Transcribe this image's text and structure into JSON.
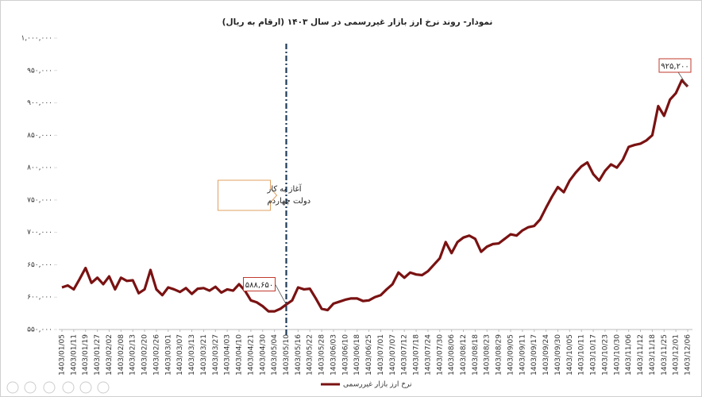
{
  "chart_data": {
    "type": "line",
    "title": "نمودار- روند نرخ ارز بازار غیررسمی در سال ۱۴۰۳ (ارقام به ریال)",
    "categories": [
      "1403/01/05",
      null,
      "1403/01/11",
      null,
      "1403/01/19",
      null,
      "1403/01/27",
      null,
      "1403/02/02",
      null,
      "1403/02/08",
      null,
      "1403/02/13",
      null,
      "1403/02/20",
      null,
      "1403/02/26",
      null,
      "1403/03/01",
      null,
      "1403/03/07",
      null,
      "1403/03/13",
      null,
      "1403/03/21",
      null,
      "1403/03/27",
      null,
      "1403/04/03",
      null,
      "1403/04/10",
      null,
      "1403/04/21",
      null,
      "1403/04/30",
      null,
      "1403/05/04",
      null,
      "1403/05/10",
      null,
      "1403/05/16",
      null,
      "1403/05/22",
      null,
      "1403/05/28",
      null,
      "1403/06/03",
      null,
      "1403/06/10",
      null,
      "1403/06/18",
      null,
      "1403/06/25",
      null,
      "1403/07/01",
      null,
      "1403/07/07",
      null,
      "1403/07/12",
      null,
      "1403/07/18",
      null,
      "1403/07/24",
      null,
      "1403/07/30",
      null,
      "1403/08/06",
      null,
      "1403/08/12",
      null,
      "1403/08/18",
      null,
      "1403/08/23",
      null,
      "1403/08/29",
      null,
      "1403/09/05",
      null,
      "1403/09/11",
      null,
      "1403/09/17",
      null,
      "1403/09/24",
      null,
      "1403/09/30",
      null,
      "1403/10/05",
      null,
      "1403/10/11",
      null,
      "1403/10/17",
      null,
      "1403/10/23",
      null,
      "1403/10/30",
      null,
      "1403/11/06",
      null,
      "1403/11/12",
      null,
      "1403/11/18",
      null,
      "1403/11/25",
      null,
      "1403/12/01",
      null,
      "1403/12/06"
    ],
    "series": [
      {
        "name": "نرخ ارز بازار غیررسمی",
        "color": "#7a1212",
        "values": [
          615000,
          618000,
          612000,
          628000,
          645000,
          622000,
          630000,
          620000,
          632000,
          612000,
          630000,
          625000,
          626000,
          606000,
          612000,
          642000,
          612000,
          603000,
          615000,
          612000,
          608000,
          614000,
          605000,
          613000,
          614000,
          610000,
          616000,
          607000,
          612000,
          610000,
          620000,
          610000,
          595000,
          592000,
          586000,
          578000,
          578000,
          582000,
          588650,
          595000,
          615000,
          612000,
          613000,
          598000,
          582000,
          580000,
          590000,
          593000,
          596000,
          598000,
          598000,
          594000,
          595000,
          600000,
          603000,
          612000,
          620000,
          638000,
          630000,
          638000,
          635000,
          634000,
          640000,
          650000,
          660000,
          685000,
          668000,
          685000,
          692000,
          695000,
          690000,
          670000,
          678000,
          682000,
          683000,
          690000,
          697000,
          695000,
          703000,
          708000,
          710000,
          720000,
          738000,
          755000,
          770000,
          762000,
          780000,
          792000,
          802000,
          808000,
          790000,
          780000,
          795000,
          805000,
          800000,
          812000,
          832000,
          835000,
          837000,
          842000,
          850000,
          895000,
          880000,
          905000,
          915000,
          935000,
          925200
        ],
        "value_labels": [
          null,
          null,
          null,
          null,
          null,
          null,
          null,
          null,
          null,
          null,
          null,
          null,
          null,
          null,
          null,
          null,
          null,
          null,
          null,
          null,
          null,
          null,
          null,
          null,
          null,
          null,
          null,
          null,
          null,
          null,
          null,
          null,
          null,
          null,
          null,
          null,
          null,
          null,
          "۵۸۸,۶۵۰",
          null,
          null,
          null,
          null,
          null,
          null,
          null,
          null,
          null,
          null,
          null,
          null,
          null,
          null,
          null,
          null,
          null,
          null,
          null,
          null,
          null,
          null,
          null,
          null,
          null,
          null,
          null,
          null,
          null,
          null,
          null,
          null,
          null,
          null,
          null,
          null,
          null,
          null,
          null,
          null,
          null,
          null,
          null,
          null,
          null,
          null,
          null,
          null,
          null,
          null,
          null,
          null,
          null,
          null,
          null,
          null,
          null,
          null,
          null,
          null,
          null,
          null,
          null,
          null,
          null,
          null,
          null,
          "۹۲۵,۲۰۰"
        ]
      }
    ],
    "ylim": [
      550000,
      1000000
    ],
    "yticks": [
      {
        "value": 550000,
        "label": "۵۵۰,۰۰۰"
      },
      {
        "value": 600000,
        "label": "۶۰۰,۰۰۰"
      },
      {
        "value": 650000,
        "label": "۶۵۰,۰۰۰"
      },
      {
        "value": 700000,
        "label": "۷۰۰,۰۰۰"
      },
      {
        "value": 750000,
        "label": "۷۵۰,۰۰۰"
      },
      {
        "value": 800000,
        "label": "۸۰۰,۰۰۰"
      },
      {
        "value": 850000,
        "label": "۸۵۰,۰۰۰"
      },
      {
        "value": 900000,
        "label": "۹۰۰,۰۰۰"
      },
      {
        "value": 950000,
        "label": "۹۵۰,۰۰۰"
      },
      {
        "value": 1000000,
        "label": "۱,۰۰۰,۰۰۰"
      }
    ],
    "grid": false,
    "legend": "bottom",
    "event_line": {
      "at": "1403/05/10",
      "label": [
        "آغاز به کار",
        "دولت چهاردم"
      ],
      "color": "#1f3b57"
    }
  }
}
